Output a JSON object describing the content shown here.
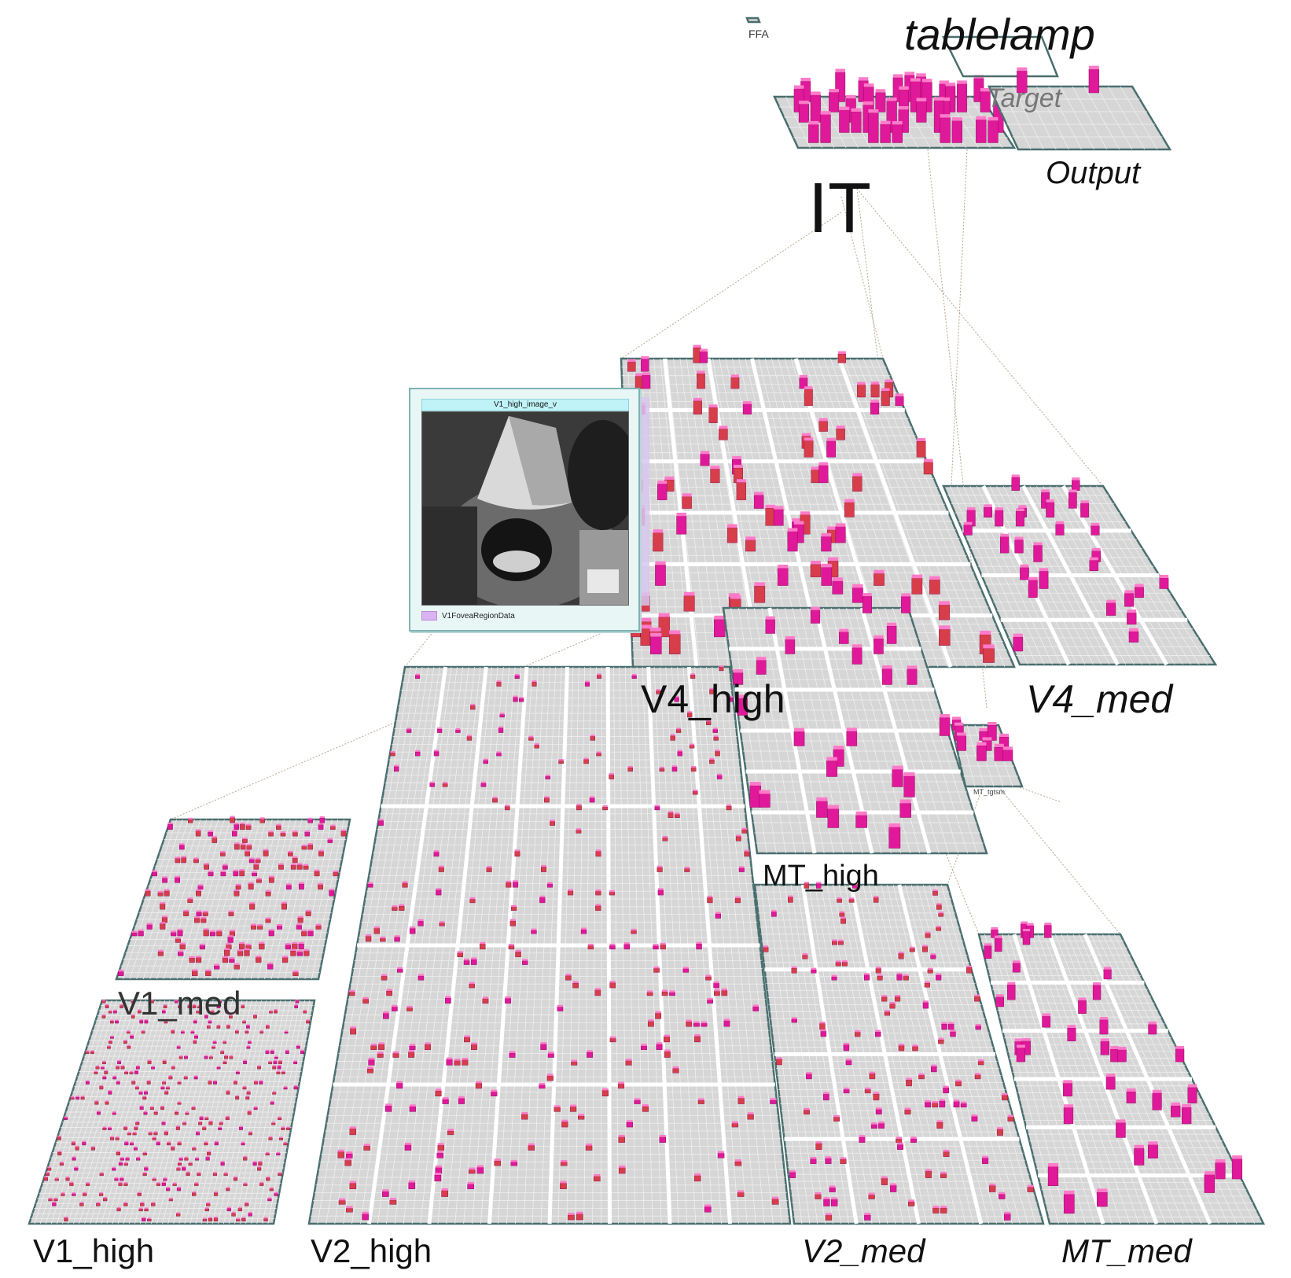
{
  "labels": {
    "tablelamp": "tablelamp",
    "target": "Target",
    "output": "Output",
    "it": "IT",
    "ffa": "FFA",
    "v4_high": "V4_high",
    "v4_med": "V4_med",
    "mt_high": "MT_high",
    "mt_small": "MT_tgtsm",
    "v1_med": "V1_med",
    "v1_high": "V1_high",
    "v2_high": "V2_high",
    "v2_med": "V2_med",
    "mt_med": "MT_med"
  },
  "viewer": {
    "title": "V1_high_image_v",
    "footer": "V1FoveaRegionData"
  },
  "colors": {
    "layer_fill": "#d6d6d6",
    "layer_border": "#4a6e6e",
    "grid_line": "#ffffff",
    "unit_magenta": "#e0189a",
    "unit_red": "#d83d4a",
    "projection_line": "#b7a58f"
  }
}
